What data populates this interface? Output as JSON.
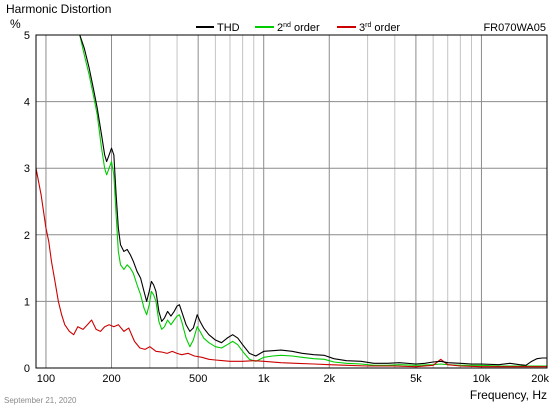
{
  "chart_data": {
    "type": "line",
    "title": "Harmonic Distortion",
    "ylabel": "%",
    "xlabel": "Frequency, Hz",
    "model": "FR070WA05",
    "date": "September 21, 2020",
    "x_scale": "log",
    "xlim": [
      90,
      20000
    ],
    "ylim": [
      0,
      5
    ],
    "grid": true,
    "legend_position": "top",
    "x_ticks": [
      {
        "value": 100,
        "label": "100"
      },
      {
        "value": 200,
        "label": "200"
      },
      {
        "value": 500,
        "label": "500"
      },
      {
        "value": 1000,
        "label": "1k"
      },
      {
        "value": 2000,
        "label": "2k"
      },
      {
        "value": 5000,
        "label": "5k"
      },
      {
        "value": 10000,
        "label": "10k"
      },
      {
        "value": 20000,
        "label": "20k"
      }
    ],
    "y_ticks": [
      {
        "value": 0,
        "label": "0"
      },
      {
        "value": 1,
        "label": "1"
      },
      {
        "value": 2,
        "label": "2"
      },
      {
        "value": 3,
        "label": "3"
      },
      {
        "value": 4,
        "label": "4"
      },
      {
        "value": 5,
        "label": "5"
      }
    ],
    "series": [
      {
        "name": "THD",
        "color": "#000000",
        "points": [
          [
            143,
            5.0
          ],
          [
            150,
            4.8
          ],
          [
            158,
            4.5
          ],
          [
            165,
            4.2
          ],
          [
            172,
            3.9
          ],
          [
            180,
            3.5
          ],
          [
            186,
            3.2
          ],
          [
            190,
            3.1
          ],
          [
            195,
            3.2
          ],
          [
            200,
            3.3
          ],
          [
            205,
            3.2
          ],
          [
            210,
            2.6
          ],
          [
            215,
            2.1
          ],
          [
            220,
            1.85
          ],
          [
            228,
            1.75
          ],
          [
            236,
            1.78
          ],
          [
            244,
            1.7
          ],
          [
            252,
            1.6
          ],
          [
            262,
            1.45
          ],
          [
            272,
            1.35
          ],
          [
            282,
            1.15
          ],
          [
            290,
            1.0
          ],
          [
            298,
            1.15
          ],
          [
            305,
            1.3
          ],
          [
            312,
            1.25
          ],
          [
            320,
            1.15
          ],
          [
            330,
            0.85
          ],
          [
            340,
            0.7
          ],
          [
            350,
            0.75
          ],
          [
            362,
            0.85
          ],
          [
            375,
            0.78
          ],
          [
            388,
            0.85
          ],
          [
            400,
            0.93
          ],
          [
            410,
            0.95
          ],
          [
            420,
            0.85
          ],
          [
            440,
            0.65
          ],
          [
            458,
            0.55
          ],
          [
            475,
            0.6
          ],
          [
            495,
            0.8
          ],
          [
            510,
            0.7
          ],
          [
            530,
            0.6
          ],
          [
            560,
            0.5
          ],
          [
            600,
            0.42
          ],
          [
            640,
            0.38
          ],
          [
            680,
            0.45
          ],
          [
            720,
            0.5
          ],
          [
            760,
            0.45
          ],
          [
            800,
            0.35
          ],
          [
            860,
            0.22
          ],
          [
            920,
            0.18
          ],
          [
            1000,
            0.25
          ],
          [
            1100,
            0.26
          ],
          [
            1200,
            0.27
          ],
          [
            1350,
            0.25
          ],
          [
            1500,
            0.22
          ],
          [
            1700,
            0.2
          ],
          [
            1900,
            0.19
          ],
          [
            2100,
            0.14
          ],
          [
            2400,
            0.11
          ],
          [
            2800,
            0.1
          ],
          [
            3200,
            0.07
          ],
          [
            3700,
            0.07
          ],
          [
            4200,
            0.08
          ],
          [
            5000,
            0.06
          ],
          [
            5500,
            0.07
          ],
          [
            6000,
            0.09
          ],
          [
            6500,
            0.1
          ],
          [
            7000,
            0.08
          ],
          [
            8000,
            0.07
          ],
          [
            9000,
            0.06
          ],
          [
            10000,
            0.06
          ],
          [
            12000,
            0.05
          ],
          [
            13500,
            0.07
          ],
          [
            15000,
            0.05
          ],
          [
            16000,
            0.04
          ],
          [
            17000,
            0.1
          ],
          [
            18000,
            0.14
          ],
          [
            19000,
            0.15
          ],
          [
            20000,
            0.15
          ]
        ]
      },
      {
        "name": "2nd order",
        "color": "#00cc00",
        "points": [
          [
            143,
            5.0
          ],
          [
            150,
            4.7
          ],
          [
            158,
            4.4
          ],
          [
            165,
            4.1
          ],
          [
            172,
            3.8
          ],
          [
            180,
            3.3
          ],
          [
            186,
            3.0
          ],
          [
            190,
            2.9
          ],
          [
            195,
            3.0
          ],
          [
            200,
            3.1
          ],
          [
            205,
            2.9
          ],
          [
            210,
            2.3
          ],
          [
            215,
            1.75
          ],
          [
            220,
            1.55
          ],
          [
            228,
            1.48
          ],
          [
            236,
            1.55
          ],
          [
            244,
            1.5
          ],
          [
            252,
            1.42
          ],
          [
            262,
            1.25
          ],
          [
            272,
            1.1
          ],
          [
            282,
            0.9
          ],
          [
            290,
            0.8
          ],
          [
            298,
            0.95
          ],
          [
            305,
            1.15
          ],
          [
            312,
            1.1
          ],
          [
            320,
            1.0
          ],
          [
            330,
            0.7
          ],
          [
            340,
            0.58
          ],
          [
            350,
            0.62
          ],
          [
            362,
            0.72
          ],
          [
            375,
            0.65
          ],
          [
            388,
            0.72
          ],
          [
            400,
            0.78
          ],
          [
            410,
            0.8
          ],
          [
            420,
            0.7
          ],
          [
            440,
            0.45
          ],
          [
            458,
            0.32
          ],
          [
            475,
            0.42
          ],
          [
            495,
            0.62
          ],
          [
            510,
            0.55
          ],
          [
            530,
            0.45
          ],
          [
            560,
            0.38
          ],
          [
            600,
            0.32
          ],
          [
            640,
            0.3
          ],
          [
            680,
            0.35
          ],
          [
            720,
            0.4
          ],
          [
            760,
            0.35
          ],
          [
            800,
            0.25
          ],
          [
            860,
            0.13
          ],
          [
            920,
            0.1
          ],
          [
            1000,
            0.16
          ],
          [
            1100,
            0.18
          ],
          [
            1200,
            0.19
          ],
          [
            1350,
            0.18
          ],
          [
            1500,
            0.16
          ],
          [
            1700,
            0.14
          ],
          [
            1900,
            0.13
          ],
          [
            2100,
            0.09
          ],
          [
            2400,
            0.07
          ],
          [
            2800,
            0.06
          ],
          [
            3200,
            0.04
          ],
          [
            3700,
            0.04
          ],
          [
            4200,
            0.05
          ],
          [
            5000,
            0.04
          ],
          [
            6000,
            0.05
          ],
          [
            6500,
            0.06
          ],
          [
            7000,
            0.05
          ],
          [
            8000,
            0.04
          ],
          [
            10000,
            0.04
          ],
          [
            12000,
            0.03
          ],
          [
            15000,
            0.03
          ],
          [
            20000,
            0.03
          ]
        ]
      },
      {
        "name": "3rd order",
        "color": "#cc0000",
        "points": [
          [
            90,
            3.0
          ],
          [
            95,
            2.6
          ],
          [
            100,
            2.1
          ],
          [
            103,
            1.9
          ],
          [
            106,
            1.6
          ],
          [
            110,
            1.3
          ],
          [
            114,
            1.0
          ],
          [
            118,
            0.8
          ],
          [
            122,
            0.65
          ],
          [
            128,
            0.55
          ],
          [
            134,
            0.5
          ],
          [
            140,
            0.62
          ],
          [
            148,
            0.58
          ],
          [
            155,
            0.65
          ],
          [
            162,
            0.72
          ],
          [
            170,
            0.58
          ],
          [
            178,
            0.55
          ],
          [
            186,
            0.62
          ],
          [
            195,
            0.65
          ],
          [
            205,
            0.62
          ],
          [
            215,
            0.65
          ],
          [
            228,
            0.55
          ],
          [
            240,
            0.6
          ],
          [
            255,
            0.4
          ],
          [
            270,
            0.3
          ],
          [
            285,
            0.28
          ],
          [
            300,
            0.32
          ],
          [
            320,
            0.25
          ],
          [
            340,
            0.24
          ],
          [
            360,
            0.22
          ],
          [
            380,
            0.25
          ],
          [
            400,
            0.22
          ],
          [
            420,
            0.2
          ],
          [
            450,
            0.22
          ],
          [
            480,
            0.18
          ],
          [
            520,
            0.16
          ],
          [
            560,
            0.13
          ],
          [
            600,
            0.12
          ],
          [
            650,
            0.11
          ],
          [
            700,
            0.1
          ],
          [
            800,
            0.1
          ],
          [
            900,
            0.11
          ],
          [
            1000,
            0.1
          ],
          [
            1200,
            0.08
          ],
          [
            1400,
            0.07
          ],
          [
            1700,
            0.06
          ],
          [
            2000,
            0.05
          ],
          [
            2400,
            0.04
          ],
          [
            3000,
            0.03
          ],
          [
            4000,
            0.03
          ],
          [
            5000,
            0.02
          ],
          [
            6000,
            0.04
          ],
          [
            6500,
            0.13
          ],
          [
            7000,
            0.05
          ],
          [
            8000,
            0.03
          ],
          [
            10000,
            0.02
          ],
          [
            15000,
            0.02
          ],
          [
            20000,
            0.02
          ]
        ]
      }
    ]
  }
}
